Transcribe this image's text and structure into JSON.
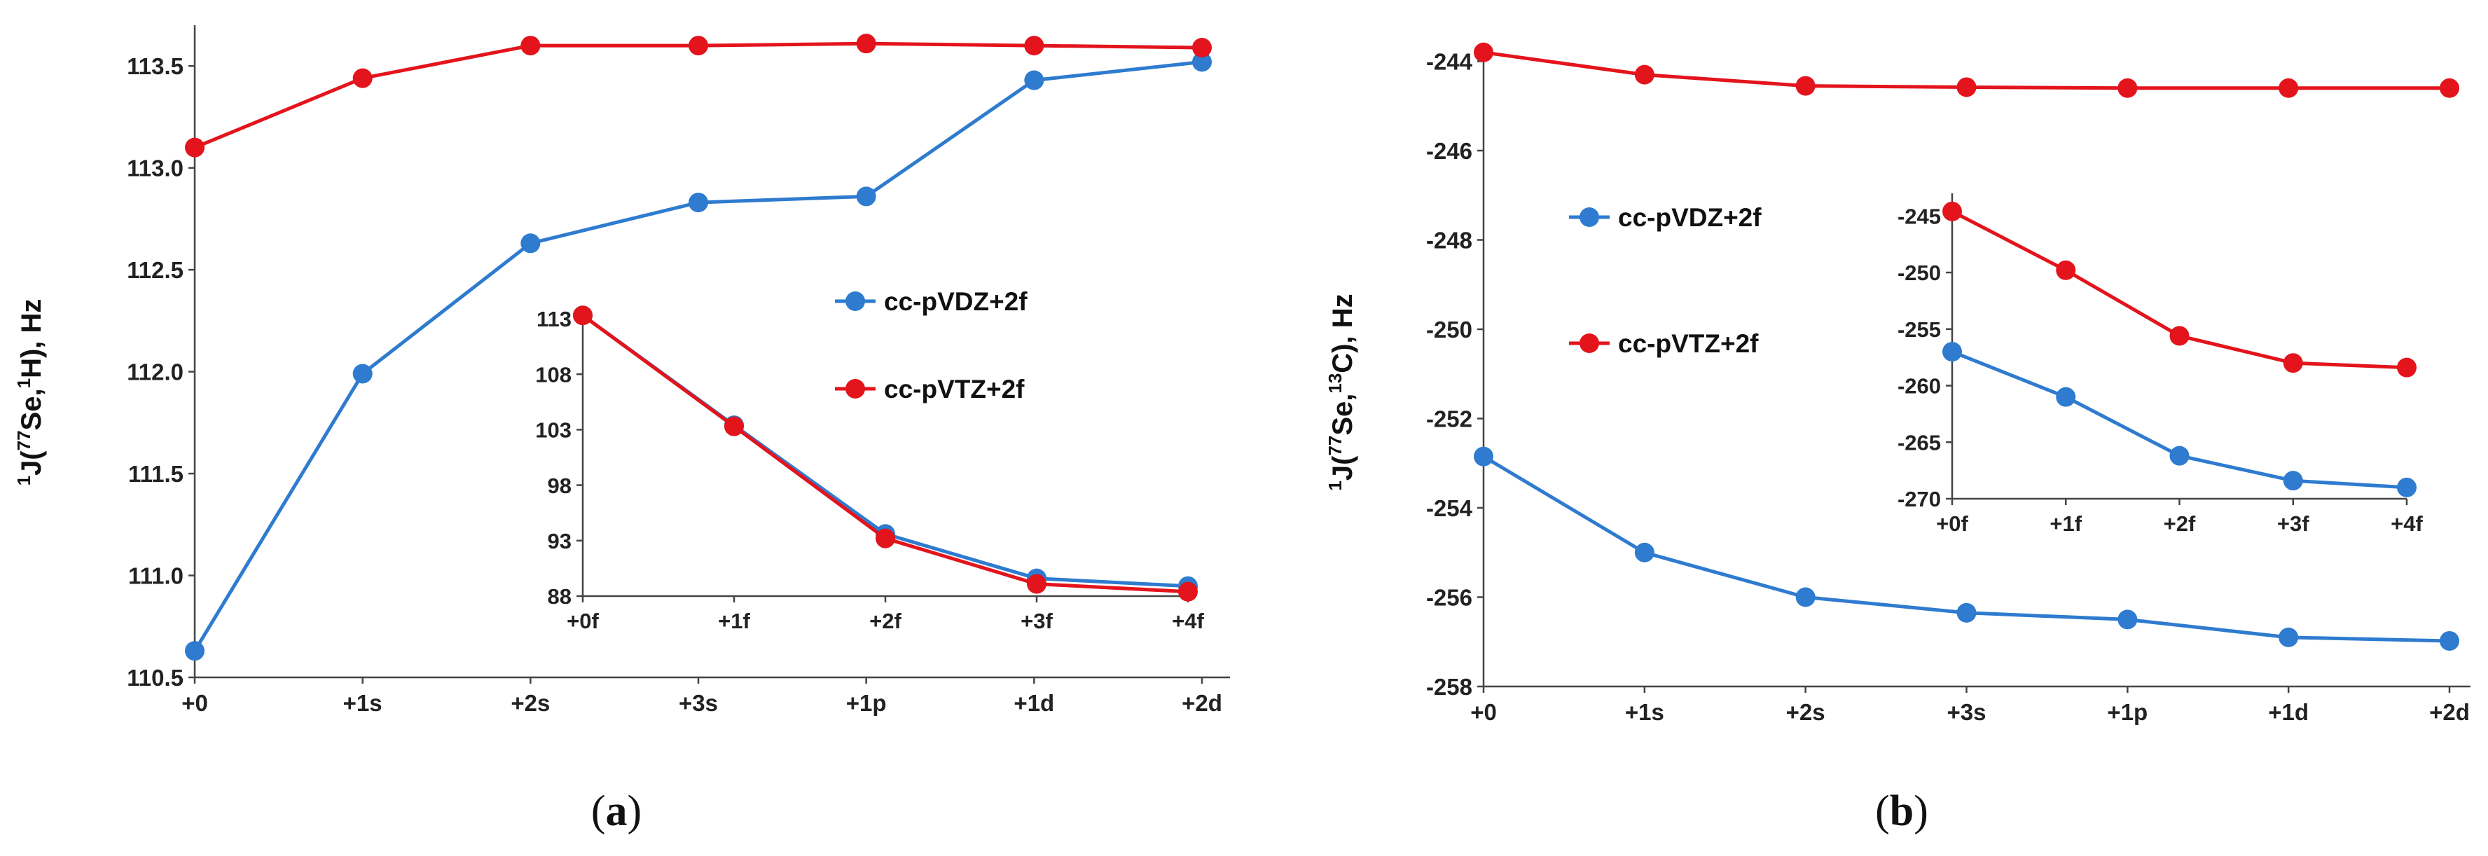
{
  "colors": {
    "vdz": "#2e7bcf",
    "vtz": "#e3141c"
  },
  "chart_data": [
    {
      "panel": "a",
      "panel_label": [
        "(",
        "a",
        ")"
      ],
      "type": "line",
      "ylabel": [
        "1",
        "J(",
        "77",
        "Se,",
        "1",
        "H), Hz"
      ],
      "categories": [
        "+0",
        "+1s",
        "+2s",
        "+3s",
        "+1p",
        "+1d",
        "+2d"
      ],
      "ylim": [
        110.5,
        113.7
      ],
      "yticks": [
        "110.5",
        "111.0",
        "111.5",
        "112.0",
        "112.5",
        "113.0",
        "113.5"
      ],
      "legend": [
        "cc-pVDZ+2f",
        "cc-pVTZ+2f"
      ],
      "series": [
        {
          "name": "cc-pVDZ+2f",
          "values": [
            110.63,
            111.99,
            112.63,
            112.83,
            112.86,
            113.43,
            113.52
          ]
        },
        {
          "name": "cc-pVTZ+2f",
          "values": [
            113.1,
            113.44,
            113.6,
            113.6,
            113.61,
            113.6,
            113.59
          ]
        }
      ],
      "inset": {
        "categories": [
          "+0f",
          "+1f",
          "+2f",
          "+3f",
          "+4f"
        ],
        "ylim": [
          88,
          113
        ],
        "yticks": [
          "88",
          "93",
          "98",
          "103",
          "108",
          "113"
        ],
        "series": [
          {
            "name": "cc-pVDZ+2f",
            "values": [
              113.3,
              103.4,
              93.6,
              89.6,
              88.9
            ]
          },
          {
            "name": "cc-pVTZ+2f",
            "values": [
              113.3,
              103.3,
              93.2,
              89.1,
              88.4
            ]
          }
        ]
      }
    },
    {
      "panel": "b",
      "panel_label": [
        "(",
        "b",
        ")"
      ],
      "type": "line",
      "ylabel": [
        "1",
        "J(",
        "77",
        "Se,",
        "13",
        "C), Hz"
      ],
      "categories": [
        "+0",
        "+1s",
        "+2s",
        "+3s",
        "+1p",
        "+1d",
        "+2d"
      ],
      "ylim": [
        -258,
        -243.6
      ],
      "yticks": [
        "-258",
        "-256",
        "-254",
        "-252",
        "-250",
        "-248",
        "-246",
        "-244"
      ],
      "legend": [
        "cc-pVDZ+2f",
        "cc-pVTZ+2f"
      ],
      "series": [
        {
          "name": "cc-pVDZ+2f",
          "values": [
            -252.85,
            -255.0,
            -256.0,
            -256.35,
            -256.5,
            -256.9,
            -256.98
          ]
        },
        {
          "name": "cc-pVTZ+2f",
          "values": [
            -243.8,
            -244.3,
            -244.55,
            -244.58,
            -244.6,
            -244.6,
            -244.6
          ]
        }
      ],
      "inset": {
        "categories": [
          "+0f",
          "+1f",
          "+2f",
          "+3f",
          "+4f"
        ],
        "ylim": [
          -270,
          -243
        ],
        "yticks": [
          "-270",
          "-265",
          "-260",
          "-255",
          "-250",
          "-245"
        ],
        "series": [
          {
            "name": "cc-pVDZ+2f",
            "values": [
              -257.0,
              -261.0,
              -266.2,
              -268.4,
              -269.0
            ]
          },
          {
            "name": "cc-pVTZ+2f",
            "values": [
              -244.6,
              -249.8,
              -255.6,
              -258.0,
              -258.4
            ]
          }
        ]
      }
    }
  ]
}
